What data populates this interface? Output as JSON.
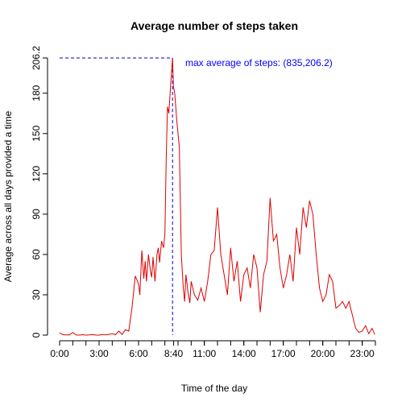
{
  "chart_data": {
    "type": "line",
    "title": "Average number of steps taken",
    "xlabel": "Time of the day",
    "ylabel": "Average across all days provided a time",
    "xlim": [
      0,
      24
    ],
    "ylim": [
      0,
      206.2
    ],
    "x_tick_values": [
      0,
      3,
      6,
      8.6667,
      11,
      14,
      17,
      20,
      23
    ],
    "x_tick_labels": [
      "0:00",
      "3:00",
      "6:00",
      "8:40",
      "11:00",
      "14:00",
      "17:00",
      "20:00",
      "23:00"
    ],
    "y_tick_values": [
      0,
      30,
      60,
      90,
      120,
      150,
      180,
      206.2
    ],
    "y_tick_labels": [
      "0",
      "30",
      "60",
      "90",
      "120",
      "150",
      "180",
      "206.2"
    ],
    "annotation": "max average of steps: (835,206.2)",
    "max_point": {
      "x": 8.5833,
      "y": 206.2
    },
    "colors": {
      "line": "#dd0000",
      "reference": "#0000cc",
      "annotation": "#0000ff",
      "axis": "#000000"
    },
    "grid": false,
    "series": [
      {
        "x": [
          0.0,
          0.25,
          0.5,
          0.75,
          1.0,
          1.25,
          1.5,
          1.75,
          2.0,
          2.25,
          2.5,
          2.75,
          3.0,
          3.25,
          3.5,
          3.75,
          4.0,
          4.25,
          4.5,
          4.75,
          5.0,
          5.25,
          5.5,
          5.75,
          6.0,
          6.1,
          6.25,
          6.4,
          6.5,
          6.6,
          6.75,
          6.9,
          7.0,
          7.1,
          7.25,
          7.4,
          7.5,
          7.6,
          7.75,
          7.9,
          8.0,
          8.1,
          8.2,
          8.3,
          8.4,
          8.5,
          8.5833,
          8.65,
          8.75,
          8.9,
          9.0,
          9.1,
          9.25,
          9.4,
          9.5,
          9.6,
          9.75,
          9.9,
          10.0,
          10.25,
          10.5,
          10.75,
          11.0,
          11.25,
          11.5,
          11.75,
          12.0,
          12.25,
          12.5,
          12.75,
          13.0,
          13.25,
          13.5,
          13.75,
          14.0,
          14.25,
          14.5,
          14.75,
          15.0,
          15.25,
          15.5,
          15.75,
          16.0,
          16.25,
          16.5,
          16.75,
          17.0,
          17.25,
          17.5,
          17.75,
          18.0,
          18.25,
          18.5,
          18.75,
          19.0,
          19.25,
          19.5,
          19.75,
          20.0,
          20.25,
          20.5,
          20.75,
          21.0,
          21.25,
          21.5,
          21.75,
          22.0,
          22.25,
          22.5,
          22.75,
          23.0,
          23.25,
          23.5,
          23.75,
          23.95
        ],
        "y": [
          1.7,
          0.3,
          0.1,
          0.2,
          2.0,
          0.1,
          0.0,
          0.3,
          0.0,
          0.2,
          0.5,
          0.0,
          0.0,
          0.4,
          0.1,
          0.6,
          1.0,
          0.3,
          3.0,
          0.5,
          4.0,
          3.0,
          20.0,
          44.0,
          38.0,
          30.0,
          63.0,
          42.0,
          55.0,
          40.0,
          60.0,
          48.0,
          43.0,
          58.0,
          40.0,
          60.0,
          65.0,
          54.0,
          70.0,
          65.0,
          75.0,
          130.0,
          170.0,
          165.0,
          180.0,
          195.0,
          206.2,
          185.0,
          180.0,
          160.0,
          150.0,
          140.0,
          60.0,
          35.0,
          25.0,
          45.0,
          32.0,
          24.0,
          40.0,
          30.0,
          26.0,
          35.0,
          25.0,
          40.0,
          60.0,
          63.0,
          95.0,
          60.0,
          45.0,
          30.0,
          65.0,
          40.0,
          55.0,
          25.0,
          45.0,
          50.0,
          35.0,
          60.0,
          50.0,
          17.0,
          45.0,
          55.0,
          102.0,
          70.0,
          75.0,
          50.0,
          35.0,
          45.0,
          60.0,
          40.0,
          80.0,
          60.0,
          95.0,
          80.0,
          100.0,
          90.0,
          60.0,
          35.0,
          25.0,
          30.0,
          45.0,
          40.0,
          20.0,
          22.0,
          25.0,
          20.0,
          25.0,
          15.0,
          5.0,
          2.0,
          3.0,
          7.0,
          1.0,
          5.0,
          0.5
        ]
      }
    ]
  }
}
